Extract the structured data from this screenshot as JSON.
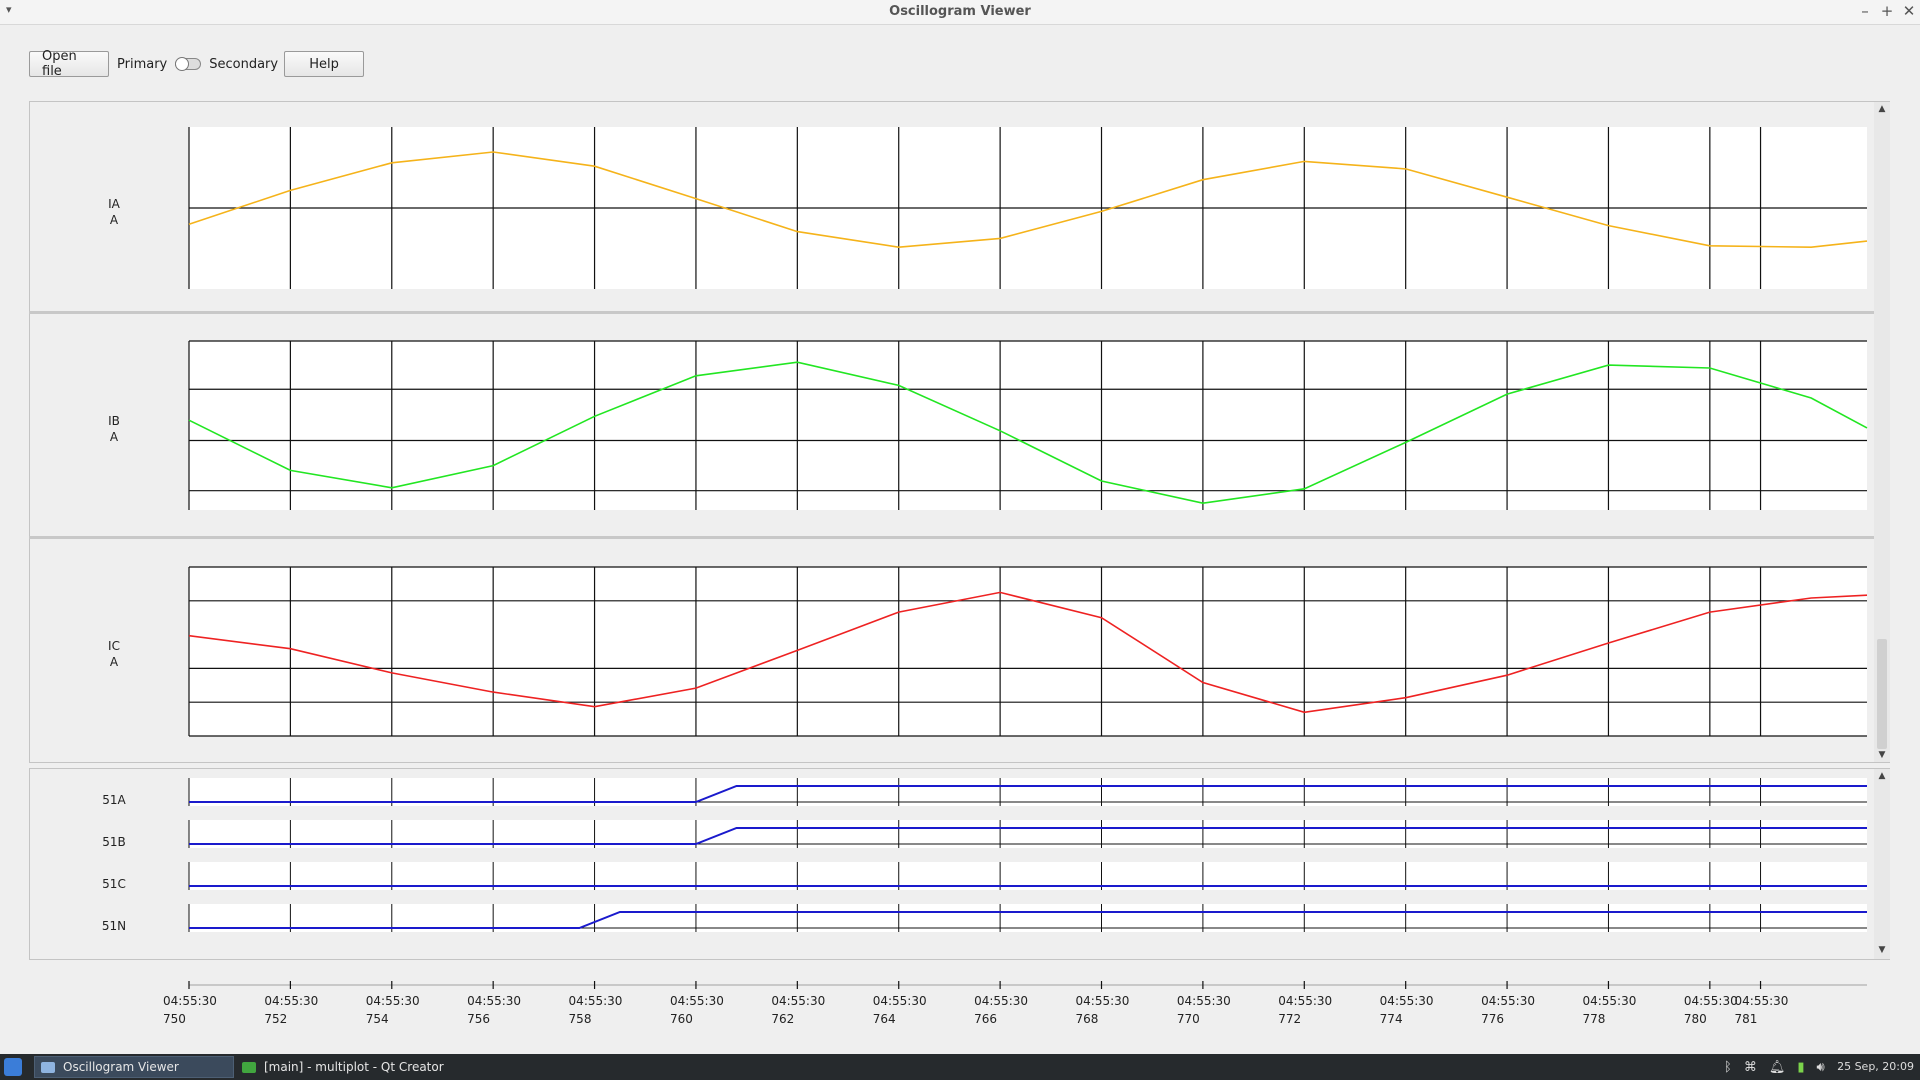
{
  "window": {
    "title": "Oscillogram Viewer"
  },
  "toolbar": {
    "open_file_label": "Open file",
    "primary_label": "Primary",
    "secondary_label": "Secondary",
    "help_label": "Help",
    "toggle_state": "primary"
  },
  "analog_channels": [
    {
      "name": "IA",
      "unit": "A",
      "color": "#f5b31a"
    },
    {
      "name": "IB",
      "unit": "A",
      "color": "#22e622"
    },
    {
      "name": "IC",
      "unit": "A",
      "color": "#ee2222"
    }
  ],
  "digital_channels": [
    {
      "name": "51A",
      "color": "#1a1acc"
    },
    {
      "name": "51B",
      "color": "#1a1acc"
    },
    {
      "name": "51C",
      "color": "#1a1acc"
    },
    {
      "name": "51N",
      "color": "#1a1acc"
    }
  ],
  "time_axis": {
    "labels": [
      {
        "time": "04:55:30",
        "ms": "750"
      },
      {
        "time": "04:55:30",
        "ms": "752"
      },
      {
        "time": "04:55:30",
        "ms": "754"
      },
      {
        "time": "04:55:30",
        "ms": "756"
      },
      {
        "time": "04:55:30",
        "ms": "758"
      },
      {
        "time": "04:55:30",
        "ms": "760"
      },
      {
        "time": "04:55:30",
        "ms": "762"
      },
      {
        "time": "04:55:30",
        "ms": "764"
      },
      {
        "time": "04:55:30",
        "ms": "766"
      },
      {
        "time": "04:55:30",
        "ms": "768"
      },
      {
        "time": "04:55:30",
        "ms": "770"
      },
      {
        "time": "04:55:30",
        "ms": "772"
      },
      {
        "time": "04:55:30",
        "ms": "774"
      },
      {
        "time": "04:55:30",
        "ms": "776"
      },
      {
        "time": "04:55:30",
        "ms": "778"
      },
      {
        "time": "04:55:30",
        "ms": "780"
      },
      {
        "time": "04:55:30",
        "ms": "781"
      }
    ]
  },
  "chart_data": {
    "type": "line",
    "x_unit": "ms after 04:55:30",
    "xlim": [
      750,
      783.1
    ],
    "series": [
      {
        "name": "IA",
        "x": [
          750,
          752,
          754,
          756,
          758,
          760,
          762,
          764,
          766,
          768,
          770,
          772,
          774,
          776,
          778,
          780,
          782,
          783.1
        ],
        "y": [
          -0.24,
          0.26,
          0.67,
          0.83,
          0.62,
          0.14,
          -0.35,
          -0.58,
          -0.45,
          -0.05,
          0.42,
          0.69,
          0.58,
          0.16,
          -0.26,
          -0.56,
          -0.58,
          -0.49
        ]
      },
      {
        "name": "IB",
        "x": [
          750,
          752,
          754,
          756,
          758,
          760,
          762,
          764,
          766,
          768,
          770,
          772,
          774,
          776,
          778,
          780,
          782,
          783.1
        ],
        "y": [
          0.28,
          -0.24,
          -0.42,
          -0.19,
          0.32,
          0.74,
          0.88,
          0.64,
          0.17,
          -0.35,
          -0.58,
          -0.43,
          0.05,
          0.55,
          0.85,
          0.82,
          0.51,
          0.2
        ]
      },
      {
        "name": "IC",
        "x": [
          750,
          752,
          754,
          756,
          758,
          760,
          762,
          764,
          766,
          768,
          770,
          772,
          774,
          776,
          778,
          780,
          782,
          783.1
        ],
        "y": [
          0.78,
          0.55,
          0.12,
          -0.22,
          -0.48,
          -0.15,
          0.52,
          1.2,
          1.55,
          1.1,
          -0.05,
          -0.58,
          -0.32,
          0.08,
          0.65,
          1.2,
          1.45,
          1.5
        ]
      },
      {
        "name": "51A",
        "x": [
          750,
          760,
          760.8,
          783.1
        ],
        "y": [
          0,
          0,
          1,
          1
        ]
      },
      {
        "name": "51B",
        "x": [
          750,
          760,
          760.8,
          783.1
        ],
        "y": [
          0,
          0,
          1,
          1
        ]
      },
      {
        "name": "51C",
        "x": [
          750,
          783.1
        ],
        "y": [
          0,
          0
        ]
      },
      {
        "name": "51N",
        "x": [
          750,
          757.7,
          758.5,
          783.1
        ],
        "y": [
          0,
          0,
          1,
          1
        ]
      }
    ]
  },
  "taskbar": {
    "tasks": [
      {
        "label": "Oscillogram Viewer",
        "active": true
      },
      {
        "label": "[main] - multiplot - Qt Creator",
        "active": false
      }
    ],
    "clock": "25 Sep, 20:09"
  }
}
